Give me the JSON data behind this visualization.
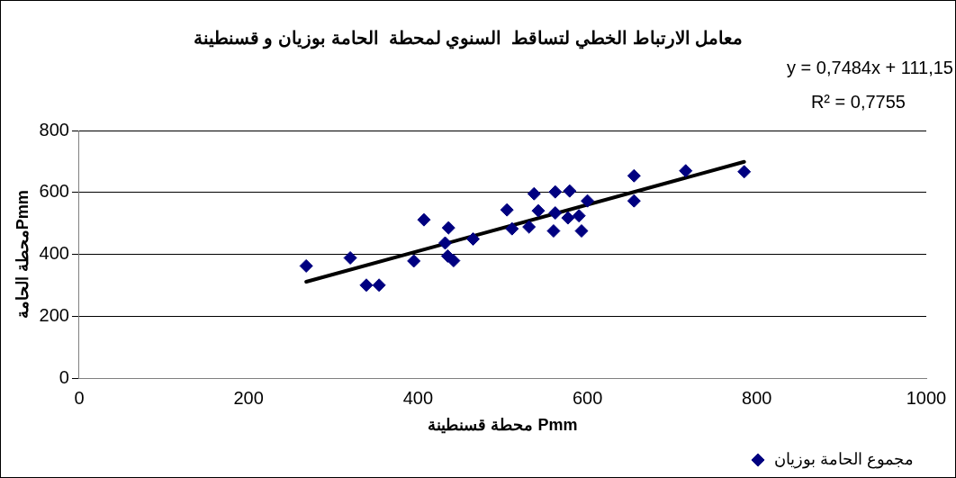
{
  "chart_data": {
    "type": "scatter",
    "title": "معامل الارتباط الخطي لتساقط  السنوي لمحطة  الحامة بوزيان و قسنطينة",
    "xlabel": "محطة قسنطينة Pmm",
    "ylabel": "محطة الحامةPmm",
    "annotations": [
      "y = 0,7484x + 111,15",
      "R² = 0,7755"
    ],
    "xlim": [
      0,
      1000
    ],
    "xticks": [
      0,
      200,
      400,
      600,
      800,
      1000
    ],
    "ylim": [
      0,
      800
    ],
    "yticks": [
      0,
      200,
      400,
      600,
      800
    ],
    "grid": "y",
    "legend": "bottom right",
    "series": [
      {
        "name": "مجموع الحامة بوزيان",
        "color": "#000080",
        "marker": "diamond",
        "x": [
          268,
          320,
          339,
          354,
          395,
          407,
          436,
          432,
          435,
          442,
          465,
          505,
          511,
          531,
          537,
          542,
          560,
          562,
          562,
          579,
          577,
          590,
          593,
          600,
          655,
          655,
          716,
          785
        ],
        "values": [
          363,
          389,
          301,
          301,
          379,
          512,
          486,
          437,
          395,
          380,
          450,
          544,
          483,
          489,
          596,
          541,
          476,
          602,
          534,
          605,
          518,
          525,
          476,
          573,
          654,
          573,
          670,
          667
        ]
      },
      {
        "type": "line",
        "color": "#000000",
        "marker": "none",
        "line_style": "solid",
        "x": [
          268,
          785
        ],
        "values": [
          312,
          699
        ]
      }
    ]
  }
}
